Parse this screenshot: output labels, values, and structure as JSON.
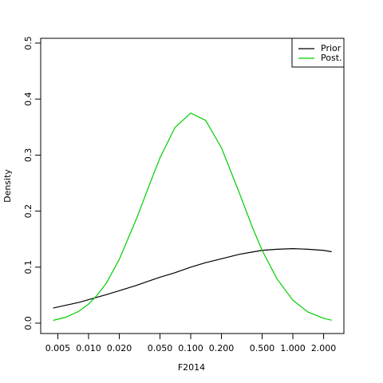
{
  "chart_data": {
    "type": "line",
    "xlabel": "F2014",
    "ylabel": "Density",
    "xscale": "log",
    "x": [
      0.0045,
      0.006,
      0.008,
      0.01,
      0.012,
      0.015,
      0.02,
      0.03,
      0.04,
      0.05,
      0.07,
      0.1,
      0.14,
      0.2,
      0.3,
      0.4,
      0.5,
      0.7,
      1.0,
      1.4,
      2.0,
      2.4
    ],
    "series": [
      {
        "name": "Prior",
        "color": "#000000",
        "values": [
          0.027,
          0.032,
          0.037,
          0.042,
          0.046,
          0.051,
          0.058,
          0.068,
          0.076,
          0.082,
          0.09,
          0.1,
          0.108,
          0.115,
          0.123,
          0.127,
          0.13,
          0.132,
          0.133,
          0.132,
          0.13,
          0.1275
        ]
      },
      {
        "name": "Post.",
        "color": "#00cd00",
        "values": [
          0.005,
          0.0107,
          0.021,
          0.034,
          0.049,
          0.072,
          0.114,
          0.19,
          0.25,
          0.295,
          0.349,
          0.375,
          0.362,
          0.313,
          0.232,
          0.172,
          0.13,
          0.079,
          0.041,
          0.02,
          0.0086,
          0.0053
        ]
      }
    ],
    "xlim": [
      0.0034,
      3.16
    ],
    "ylim": [
      -0.0185,
      0.5085
    ],
    "xticks": [
      {
        "value": 0.005,
        "label": "0.005"
      },
      {
        "value": 0.01,
        "label": "0.010"
      },
      {
        "value": 0.02,
        "label": "0.020"
      },
      {
        "value": 0.05,
        "label": "0.050"
      },
      {
        "value": 0.1,
        "label": "0.100"
      },
      {
        "value": 0.2,
        "label": "0.200"
      },
      {
        "value": 0.5,
        "label": "0.500"
      },
      {
        "value": 1,
        "label": "1.000"
      },
      {
        "value": 2,
        "label": "2.000"
      }
    ],
    "yticks": [
      {
        "value": 0,
        "label": "0.0"
      },
      0.1,
      0.2,
      0.3,
      0.4,
      0.5
    ],
    "legend": "top-right",
    "grid": false
  }
}
